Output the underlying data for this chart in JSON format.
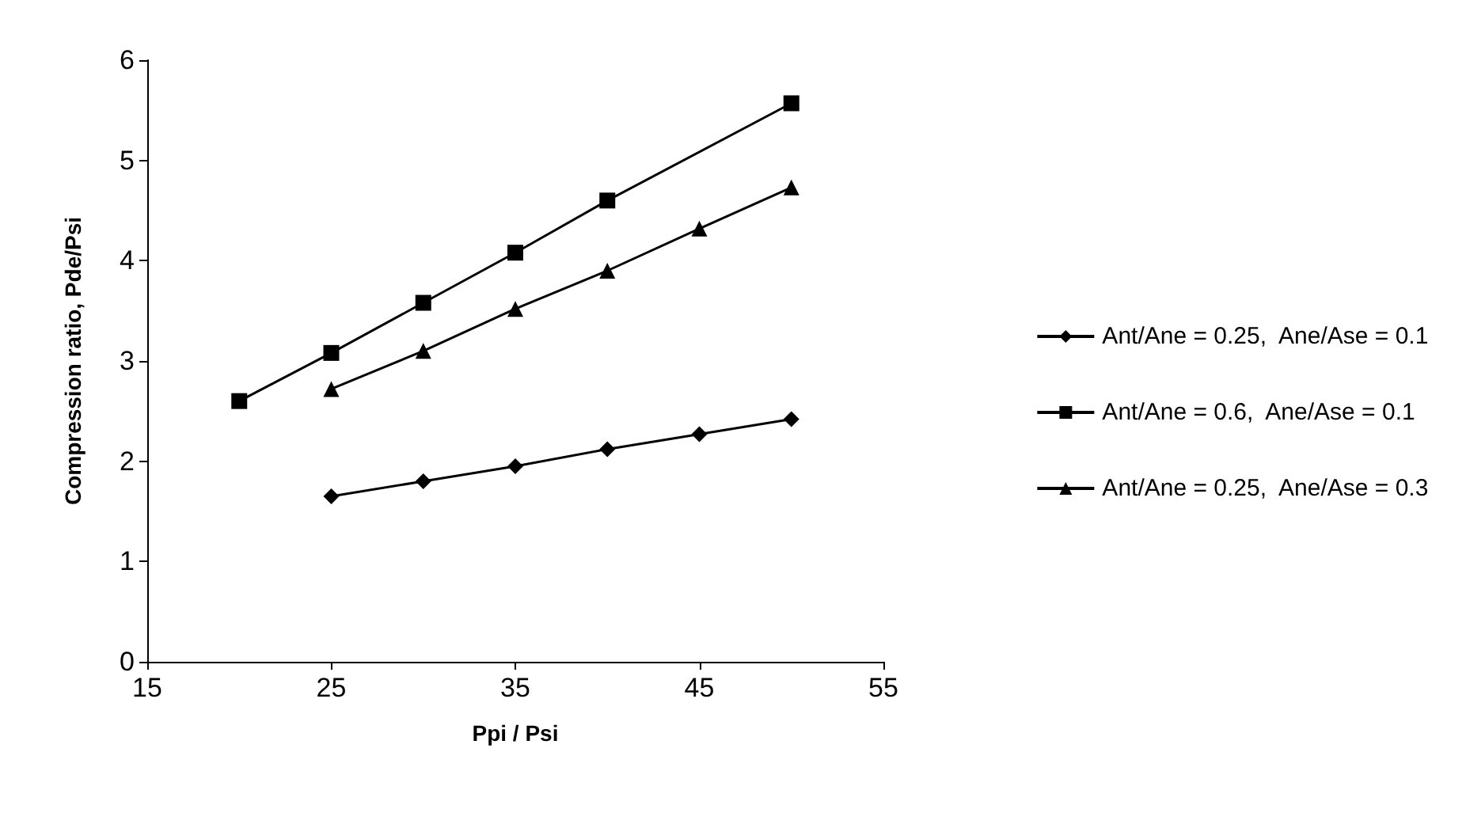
{
  "chart_data": {
    "type": "line",
    "xlabel": "Ppi / Psi",
    "ylabel": "Compression ratio, Pde/Psi",
    "xlim": [
      15,
      55
    ],
    "xticks": [
      15,
      25,
      35,
      45,
      55
    ],
    "ylim": [
      0,
      6
    ],
    "yticks": [
      0,
      1,
      2,
      3,
      4,
      5,
      6
    ],
    "grid": false,
    "legend": "right",
    "line_style": "solid",
    "series": [
      {
        "name": "Ant/Ane = 0.25,  Ane/Ase = 0.1",
        "color": "#000000",
        "marker": "diamond",
        "x": [
          25,
          30,
          35,
          40,
          45,
          50
        ],
        "values": [
          1.65,
          1.8,
          1.95,
          2.12,
          2.27,
          2.42
        ]
      },
      {
        "name": "Ant/Ane = 0.6,  Ane/Ase = 0.1",
        "color": "#000000",
        "marker": "square",
        "x": [
          20,
          25,
          30,
          35,
          40,
          50
        ],
        "values": [
          2.6,
          3.08,
          3.58,
          4.08,
          4.6,
          5.57
        ]
      },
      {
        "name": "Ant/Ane = 0.25,  Ane/Ase = 0.3",
        "color": "#000000",
        "marker": "triangle",
        "x": [
          25,
          30,
          35,
          40,
          45,
          50
        ],
        "values": [
          2.72,
          3.1,
          3.52,
          3.9,
          4.32,
          4.73
        ]
      }
    ]
  }
}
